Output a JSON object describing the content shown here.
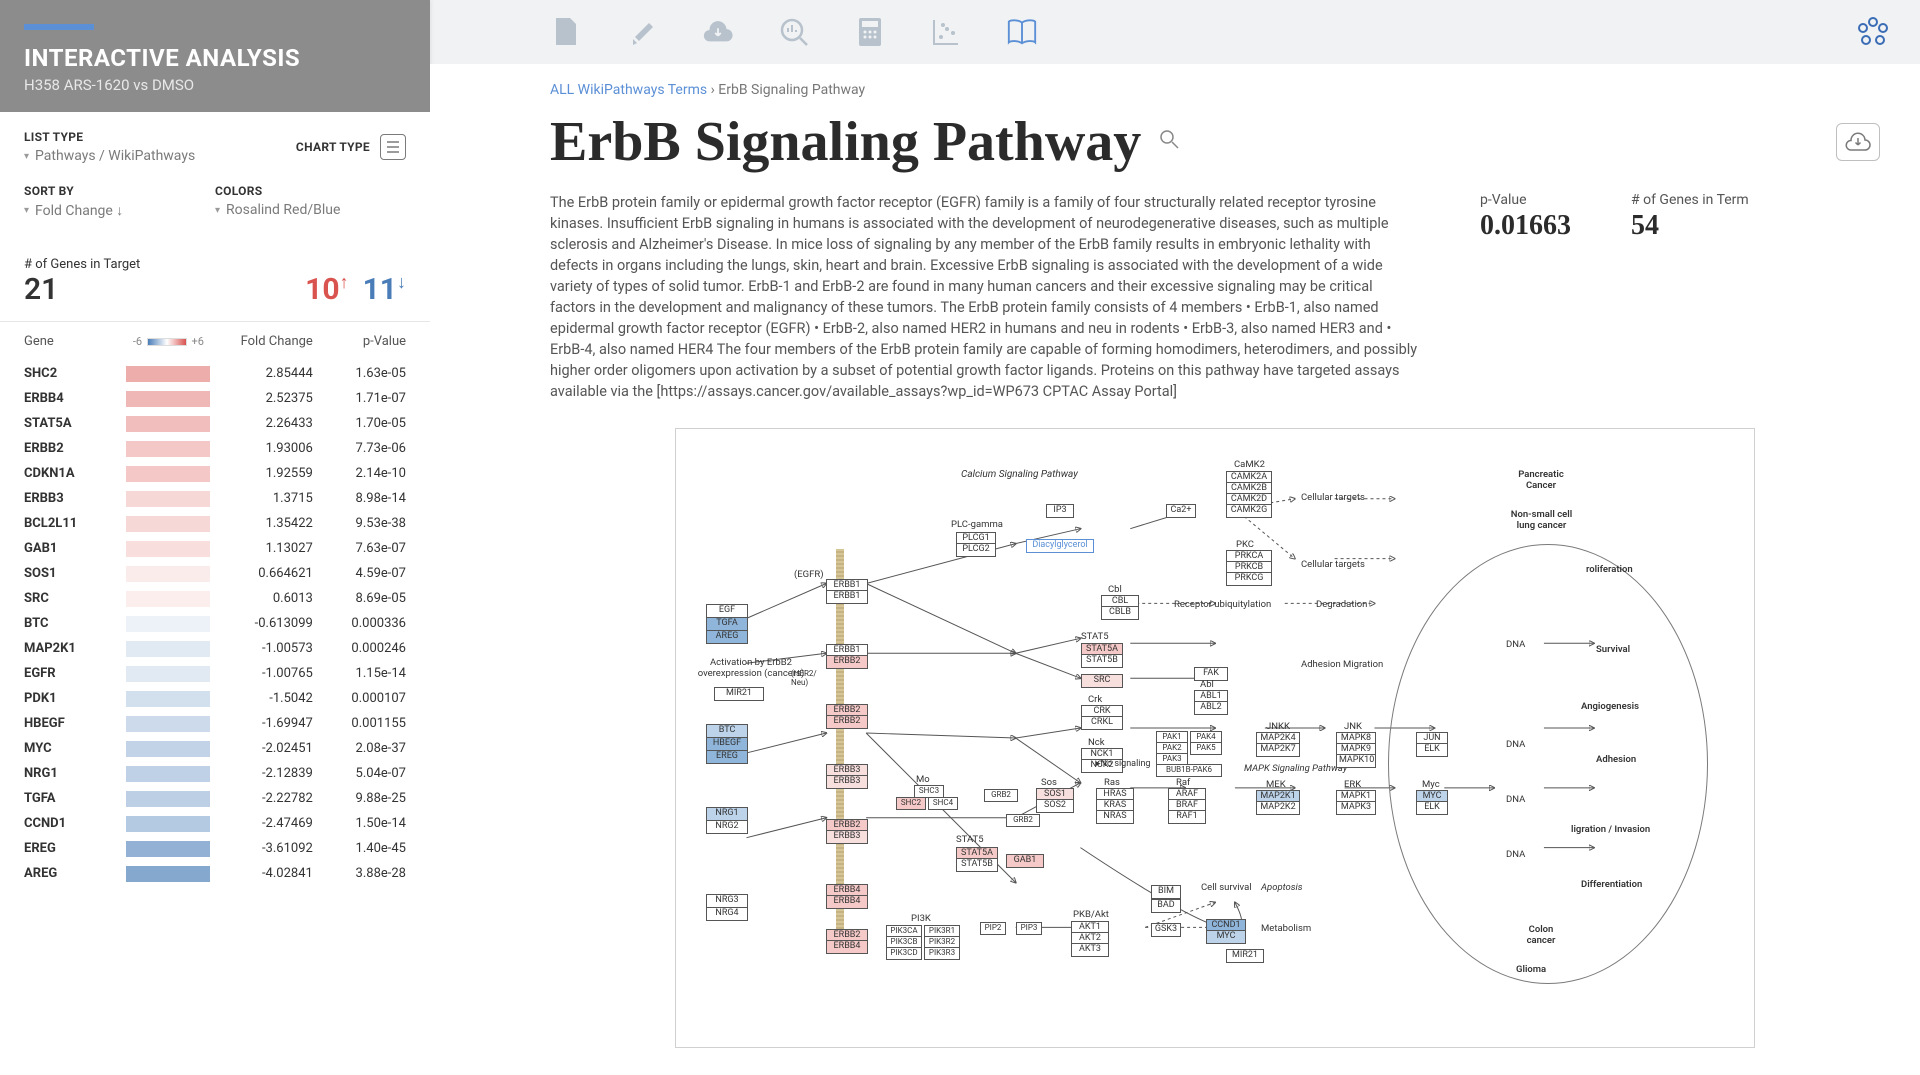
{
  "sidebar": {
    "title": "INTERACTIVE ANALYSIS",
    "subtitle": "H358 ARS-1620 vs DMSO",
    "filters": {
      "list_type_label": "LIST TYPE",
      "list_type_value": "Pathways / WikiPathways",
      "chart_type_label": "CHART TYPE",
      "sort_by_label": "SORT BY",
      "sort_by_value": "Fold Change ↓",
      "colors_label": "COLORS",
      "colors_value": "Rosalind Red/Blue"
    },
    "target": {
      "label": "# of Genes in Target",
      "count": "21",
      "up_count": "10",
      "down_count": "11"
    },
    "table": {
      "headers": {
        "gene": "Gene",
        "scale_low": "-6",
        "scale_high": "+6",
        "fc": "Fold Change",
        "pv": "p-Value"
      },
      "rows": [
        {
          "gene": "SHC2",
          "fc": "2.85444",
          "pv": "1.63e-05",
          "val": 2.85
        },
        {
          "gene": "ERBB4",
          "fc": "2.52375",
          "pv": "1.71e-07",
          "val": 2.52
        },
        {
          "gene": "STAT5A",
          "fc": "2.26433",
          "pv": "1.70e-05",
          "val": 2.26
        },
        {
          "gene": "ERBB2",
          "fc": "1.93006",
          "pv": "7.73e-06",
          "val": 1.93
        },
        {
          "gene": "CDKN1A",
          "fc": "1.92559",
          "pv": "2.14e-10",
          "val": 1.93
        },
        {
          "gene": "ERBB3",
          "fc": "1.3715",
          "pv": "8.98e-14",
          "val": 1.37
        },
        {
          "gene": "BCL2L11",
          "fc": "1.35422",
          "pv": "9.53e-38",
          "val": 1.35
        },
        {
          "gene": "GAB1",
          "fc": "1.13027",
          "pv": "7.63e-07",
          "val": 1.13
        },
        {
          "gene": "SOS1",
          "fc": "0.664621",
          "pv": "4.59e-07",
          "val": 0.66
        },
        {
          "gene": "SRC",
          "fc": "0.6013",
          "pv": "8.69e-05",
          "val": 0.6
        },
        {
          "gene": "BTC",
          "fc": "-0.613099",
          "pv": "0.000336",
          "val": -0.61
        },
        {
          "gene": "MAP2K1",
          "fc": "-1.00573",
          "pv": "0.000246",
          "val": -1.01
        },
        {
          "gene": "EGFR",
          "fc": "-1.00765",
          "pv": "1.15e-14",
          "val": -1.01
        },
        {
          "gene": "PDK1",
          "fc": "-1.5042",
          "pv": "0.000107",
          "val": -1.5
        },
        {
          "gene": "HBEGF",
          "fc": "-1.69947",
          "pv": "0.001155",
          "val": -1.7
        },
        {
          "gene": "MYC",
          "fc": "-2.02451",
          "pv": "2.08e-37",
          "val": -2.02
        },
        {
          "gene": "NRG1",
          "fc": "-2.12839",
          "pv": "5.04e-07",
          "val": -2.13
        },
        {
          "gene": "TGFA",
          "fc": "-2.22782",
          "pv": "9.88e-25",
          "val": -2.23
        },
        {
          "gene": "CCND1",
          "fc": "-2.47469",
          "pv": "1.50e-14",
          "val": -2.47
        },
        {
          "gene": "EREG",
          "fc": "-3.61092",
          "pv": "1.40e-45",
          "val": -3.61
        },
        {
          "gene": "AREG",
          "fc": "-4.02841",
          "pv": "3.88e-28",
          "val": -4.03
        }
      ],
      "scale": 6,
      "pos_color": "#d9534f",
      "neg_color": "#4a7db8"
    }
  },
  "main": {
    "breadcrumb_link": "ALL WikiPathways Terms",
    "breadcrumb_sep": " › ",
    "breadcrumb_current": "ErbB Signaling Pathway",
    "title": "ErbB Signaling Pathway",
    "description": "The ErbB protein family or epidermal growth factor receptor (EGFR) family is a family of four structurally related receptor tyrosine kinases. Insufficient ErbB signaling in humans is associated with the development of neurodegenerative diseases, such as multiple sclerosis and Alzheimer's Disease. In mice loss of signaling by any member of the ErbB family results in embryonic lethality with defects in organs including the lungs, skin, heart and brain. Excessive ErbB signaling is associated with the development of a wide variety of types of solid tumor. ErbB-1 and ErbB-2 are found in many human cancers and their excessive signaling may be critical factors in the development and malignancy of these tumors. The ErbB protein family consists of 4 members • ErbB-1, also named epidermal growth factor receptor (EGFR) • ErbB-2, also named HER2 in humans and neu in rodents • ErbB-3, also named HER3 and • ErbB-4, also named HER4 The four members of the ErbB protein family are capable of forming homodimers, heterodimers, and possibly higher order oligomers upon activation by a subset of potential growth factor ligands. Proteins on this pathway have targeted assays available via the [https://assays.cancer.gov/available_assays?wp_id=WP673 CPTAC Assay Portal]",
    "pvalue_label": "p-Value",
    "pvalue": "0.01663",
    "genes_label": "# of Genes in Term",
    "genes": "54"
  },
  "diagram": {
    "title": "Calcium Signaling Pathway",
    "labels": {
      "cellular_targets": "Cellular targets",
      "receptor_ubiq": "Receptor ubiquitylation",
      "degradation": "Degradation",
      "adhesion_migration": "Adhesion Migration",
      "no_signaling": "No signaling",
      "mapk": "MAPK Signaling Pathway",
      "cell_survival": "Cell survival",
      "apoptosis": "Apoptosis",
      "metabolism": "Metabolism",
      "activation": "Activation by ErbB2 overexpression (cancers)",
      "dna": "DNA",
      "pancreatic": "Pancreatic Cancer",
      "nsclc": "Non-small cell lung cancer",
      "proliferation": "roliferation",
      "survival": "Survival",
      "angiogenesis": "Angiogenesis",
      "adhesion": "Adhesion",
      "invasion": "ligration / Invasion",
      "differentiation": "Differentiation",
      "colon": "Colon cancer",
      "glioma": "Glioma"
    }
  }
}
